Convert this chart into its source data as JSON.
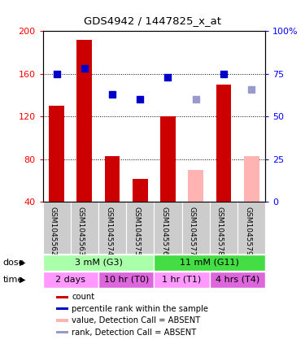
{
  "title": "GDS4942 / 1447825_x_at",
  "samples": [
    "GSM1045562",
    "GSM1045563",
    "GSM1045574",
    "GSM1045575",
    "GSM1045576",
    "GSM1045577",
    "GSM1045578",
    "GSM1045579"
  ],
  "bar_values": [
    130,
    192,
    83,
    62,
    120,
    70,
    150,
    83
  ],
  "bar_absent": [
    false,
    false,
    false,
    false,
    false,
    true,
    false,
    true
  ],
  "rank_values": [
    75,
    78,
    63,
    60,
    73,
    60,
    75,
    66
  ],
  "rank_absent": [
    false,
    false,
    false,
    false,
    false,
    true,
    false,
    true
  ],
  "bar_color_present": "#cc0000",
  "bar_color_absent": "#ffb3b3",
  "rank_color_present": "#0000cc",
  "rank_color_absent": "#9999cc",
  "ylim_left": [
    40,
    200
  ],
  "ylim_right": [
    0,
    100
  ],
  "yticks_left": [
    40,
    80,
    120,
    160,
    200
  ],
  "yticks_right": [
    0,
    25,
    50,
    75,
    100
  ],
  "ytick_labels_right": [
    "0",
    "25",
    "50",
    "75",
    "100%"
  ],
  "dose_groups": [
    {
      "label": "3 mM (G3)",
      "start": 0,
      "end": 4,
      "color": "#aaffaa"
    },
    {
      "label": "11 mM (G11)",
      "start": 4,
      "end": 8,
      "color": "#44dd44"
    }
  ],
  "time_groups": [
    {
      "label": "2 days",
      "start": 0,
      "end": 2,
      "color": "#ff99ff"
    },
    {
      "label": "10 hr (T0)",
      "start": 2,
      "end": 4,
      "color": "#dd66dd"
    },
    {
      "label": "1 hr (T1)",
      "start": 4,
      "end": 6,
      "color": "#ff99ff"
    },
    {
      "label": "4 hrs (T4)",
      "start": 6,
      "end": 8,
      "color": "#dd66dd"
    }
  ],
  "legend_items": [
    {
      "color": "#cc0000",
      "label": "count"
    },
    {
      "color": "#0000cc",
      "label": "percentile rank within the sample"
    },
    {
      "color": "#ffb3b3",
      "label": "value, Detection Call = ABSENT"
    },
    {
      "color": "#9999cc",
      "label": "rank, Detection Call = ABSENT"
    }
  ],
  "sample_box_color": "#cccccc",
  "bg_color": "#ffffff",
  "grid_color": "#000000"
}
